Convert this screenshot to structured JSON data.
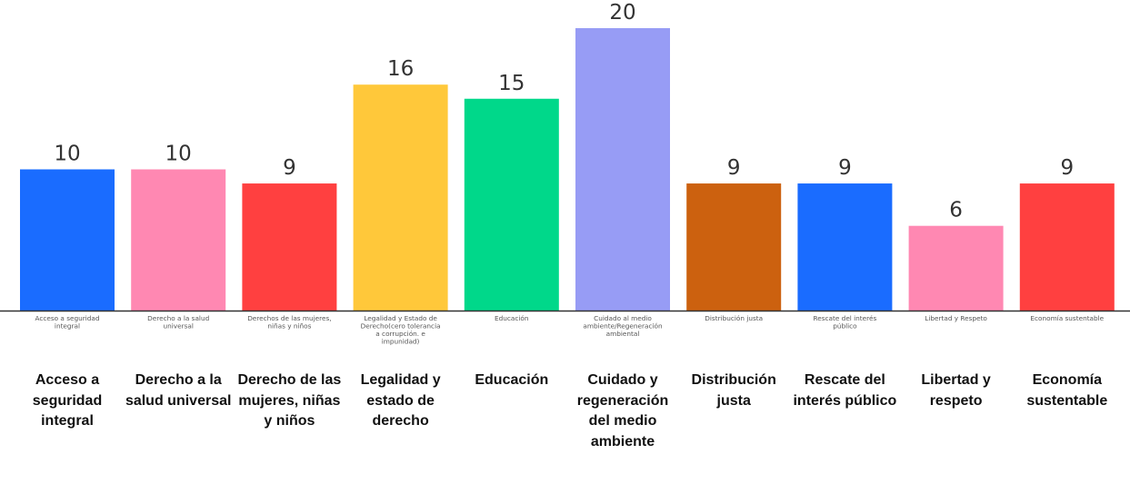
{
  "chart_data": {
    "type": "bar",
    "title": "",
    "xlabel": "",
    "ylabel": "",
    "ylim": [
      0,
      20
    ],
    "grid": false,
    "categories": [
      "Acceso a seguridad integral",
      "Derecho a la salud universal",
      "Derechos de las mujeres, niñas y niños",
      "Legalidad y Estado de Derecho(cero tolerancia a corrupción. e impunidad)",
      "Educación",
      "Cuidado al medio ambiente/Regeneración ambiental",
      "Distribución justa",
      "Rescate del interés público",
      "Libertad y Respeto",
      "Economía sustentable"
    ],
    "values": [
      10,
      10,
      9,
      16,
      15,
      20,
      9,
      9,
      6,
      9
    ],
    "colors": [
      "#1a6cff",
      "#ff88b2",
      "#ff4040",
      "#ffc83a",
      "#00d88a",
      "#979cf5",
      "#cc610f",
      "#1a6cff",
      "#ff88b2",
      "#ff4040"
    ],
    "bottom_labels": [
      "Acceso a seguridad integral",
      "Derecho a la salud universal",
      "Derecho de las mujeres, niñas y niños",
      "Legalidad y estado de derecho",
      "Educación",
      "Cuidado y regeneración del medio ambiente",
      "Distribución justa",
      "Rescate del interés público",
      "Libertad y respeto",
      "Economía sustentable"
    ]
  }
}
